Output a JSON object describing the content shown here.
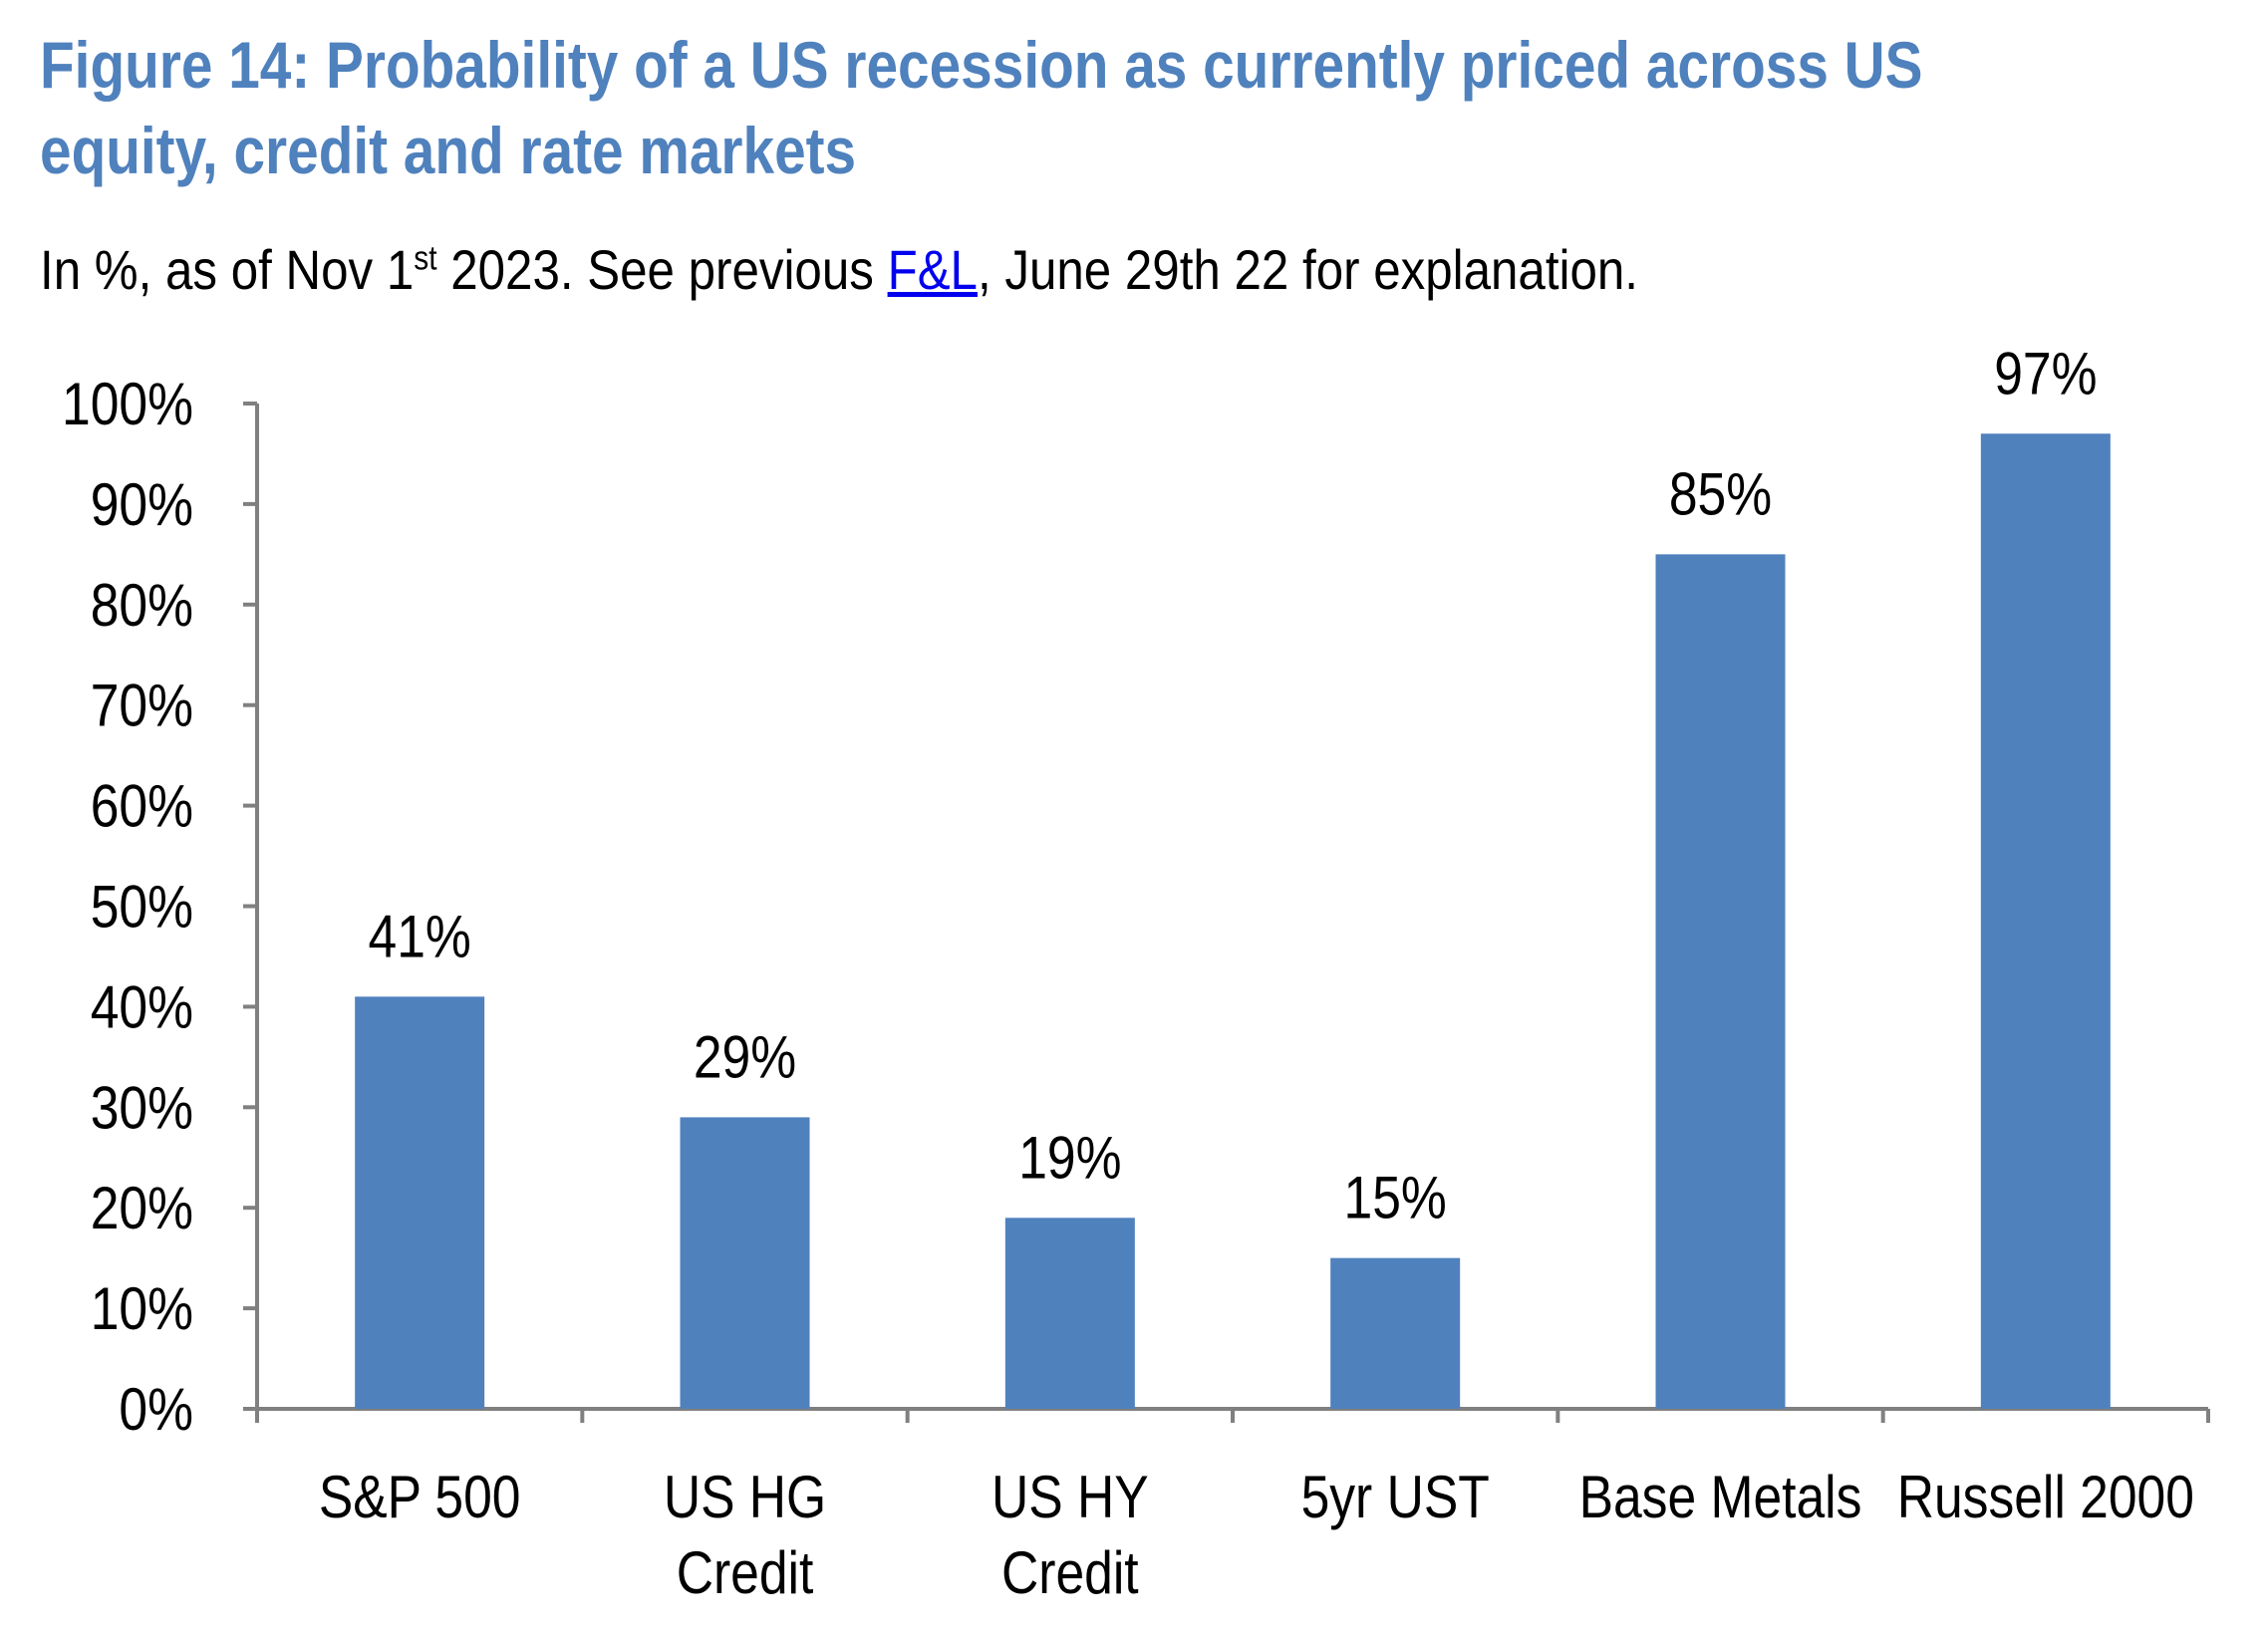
{
  "header": {
    "title": "Figure 14: Probability of a US recession as currently priced across US equity, credit and rate markets",
    "subtitle_prefix": "In %, as of Nov 1",
    "subtitle_sup": "st",
    "subtitle_mid": " 2023. See previous ",
    "subtitle_link": "F&L",
    "subtitle_suffix": ", June 29th 22 for explanation."
  },
  "colors": {
    "title": "#4f81bd",
    "bar": "#4f81bd",
    "axis": "#808080",
    "link": "#0000ee"
  },
  "chart_data": {
    "type": "bar",
    "title": "",
    "xlabel": "",
    "ylabel": "",
    "categories": [
      [
        "S&P 500"
      ],
      [
        "US HG",
        "Credit"
      ],
      [
        "US HY",
        "Credit"
      ],
      [
        "5yr UST"
      ],
      [
        "Base Metals"
      ],
      [
        "Russell 2000"
      ]
    ],
    "values": [
      41,
      29,
      19,
      15,
      85,
      97
    ],
    "data_labels": [
      "41%",
      "29%",
      "19%",
      "15%",
      "85%",
      "97%"
    ],
    "ylim": [
      0,
      100
    ],
    "yticks": [
      0,
      10,
      20,
      30,
      40,
      50,
      60,
      70,
      80,
      90,
      100
    ],
    "ytick_labels": [
      "0%",
      "10%",
      "20%",
      "30%",
      "40%",
      "50%",
      "60%",
      "70%",
      "80%",
      "90%",
      "100%"
    ],
    "grid": false,
    "legend": "none"
  }
}
